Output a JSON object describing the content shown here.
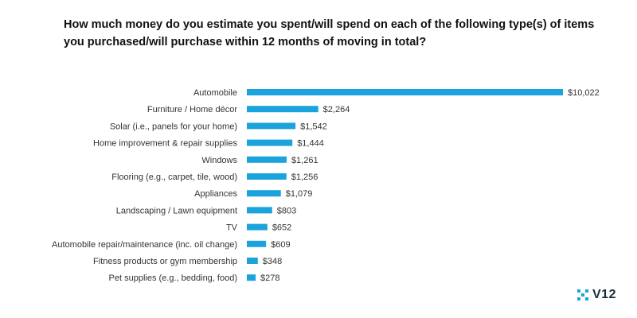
{
  "chart_data": {
    "type": "bar",
    "orientation": "horizontal",
    "title": "How much money do you estimate you spent/will spend on each of the following type(s) of items you purchased/will purchase within 12 months of moving in total?",
    "categories": [
      "Automobile",
      "Furniture / Home décor",
      "Solar (i.e., panels for your home)",
      "Home improvement & repair supplies",
      "Windows",
      "Flooring (e.g., carpet, tile, wood)",
      "Appliances",
      "Landscaping / Lawn equipment",
      "TV",
      "Automobile repair/maintenance (inc. oil change)",
      "Fitness products or gym membership",
      "Pet supplies (e.g., bedding, food)"
    ],
    "values": [
      10022,
      2264,
      1542,
      1444,
      1261,
      1256,
      1079,
      803,
      652,
      609,
      348,
      278
    ],
    "value_labels": [
      "$10,022",
      "$2,264",
      "$1,542",
      "$1,444",
      "$1,261",
      "$1,256",
      "$1,079",
      "$803",
      "$652",
      "$609",
      "$348",
      "$278"
    ],
    "bar_color": "#1aa3dc",
    "grid": false,
    "legend": "none"
  },
  "logo": {
    "text": "V12",
    "icon": "checker-icon",
    "color": "#1aa3dc"
  }
}
